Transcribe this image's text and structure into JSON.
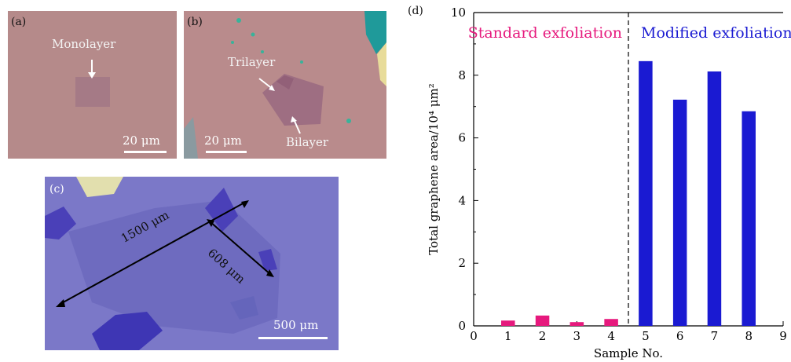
{
  "panels": {
    "a": {
      "tag": "(a)",
      "label_monolayer": "Monolayer",
      "scale": "20 μm",
      "colors": {
        "substrate": "#b58a8a",
        "flake": "#a57a86"
      }
    },
    "b": {
      "tag": "(b)",
      "label_trilayer": "Trilayer",
      "label_bilayer": "Bilayer",
      "scale": "20 μm",
      "colors": {
        "substrate": "#b98b8c",
        "flake": "#9e6e82",
        "thick_flake": "#1f9a9a",
        "yellow_flake": "#e8dc9a"
      }
    },
    "c": {
      "tag": "(c)",
      "length_long": "1500 μm",
      "length_short": "608 μm",
      "scale": "500 μm",
      "colors": {
        "substrate": "#7b78c8",
        "flake": "#6e6bbf",
        "thick_flake": "#4a40b8",
        "yellow_flake": "#e2dfae"
      }
    },
    "d": {
      "tag": "(d)"
    }
  },
  "chart_data": {
    "type": "bar",
    "x": [
      1,
      2,
      3,
      4,
      5,
      6,
      7,
      8
    ],
    "series": [
      {
        "name": "Standard exfoliation",
        "x": [
          1,
          2,
          3,
          4
        ],
        "values": [
          0.17,
          0.33,
          0.12,
          0.22
        ],
        "color": "#e6197d"
      },
      {
        "name": "Modified exfoliation",
        "x": [
          5,
          6,
          7,
          8
        ],
        "values": [
          8.45,
          7.22,
          8.12,
          6.85
        ],
        "color": "#1a1ad2"
      }
    ],
    "xlim": [
      0,
      9
    ],
    "ylim": [
      0,
      10
    ],
    "xticks": [
      0,
      1,
      2,
      3,
      4,
      5,
      6,
      7,
      8,
      9
    ],
    "yticks": [
      0,
      2,
      4,
      6,
      8,
      10
    ],
    "xlabel": "Sample No.",
    "ylabel": "Total graphene area/10⁴ μm²",
    "divider_x": 4.5,
    "annotations": [
      "Standard exfoliation",
      "Modified exfoliation"
    ],
    "grid": false
  }
}
